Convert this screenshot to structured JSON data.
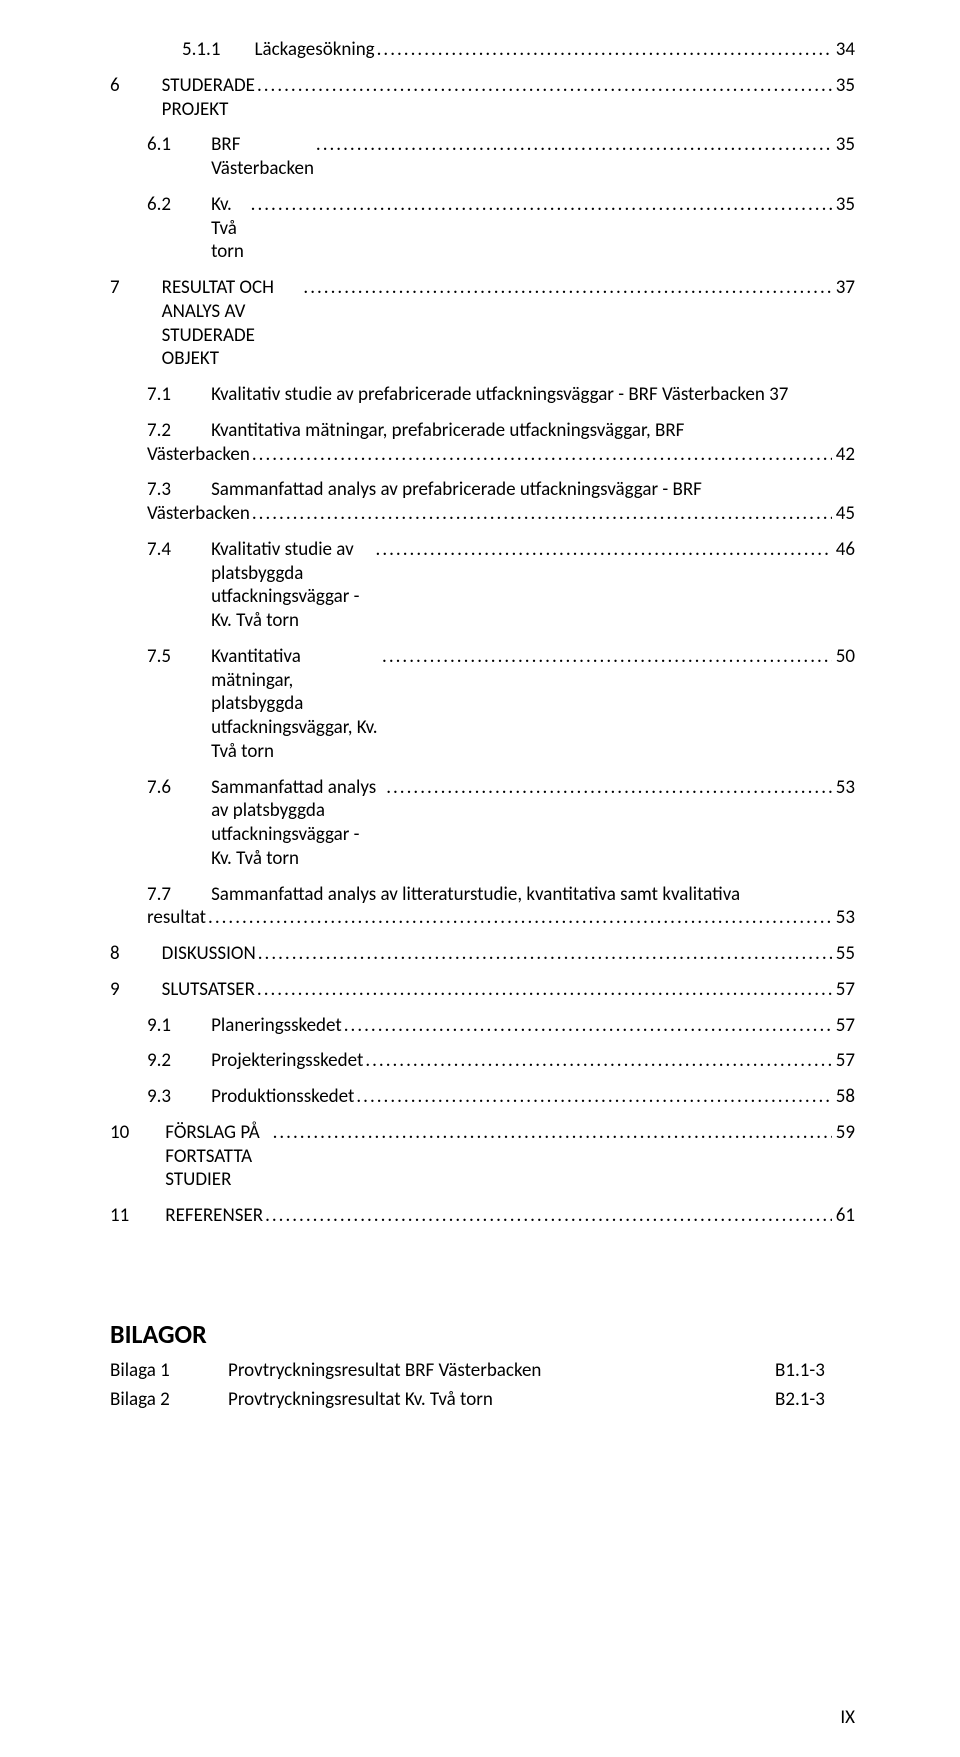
{
  "toc": [
    {
      "level": 3,
      "num": "5.1.1",
      "label": "Läckagesökning",
      "page": "34"
    },
    {
      "level": 1,
      "num": "6",
      "label": "STUDERADE PROJEKT",
      "page": "35"
    },
    {
      "level": 2,
      "num": "6.1",
      "label": "BRF Västerbacken",
      "page": "35"
    },
    {
      "level": 2,
      "num": "6.2",
      "label": "Kv. Två torn",
      "page": "35"
    },
    {
      "level": 1,
      "num": "7",
      "label": "RESULTAT OCH ANALYS AV STUDERADE OBJEKT",
      "page": "37"
    },
    {
      "level": 2,
      "num": "7.1",
      "label": "Kvalitativ studie av prefabricerade utfackningsväggar - BRF Västerbacken",
      "page": "37",
      "nobreakpage": true
    },
    {
      "level": 2,
      "num": "7.2",
      "label": "Kvantitativa mätningar, prefabricerade utfackningsväggar, BRF",
      "cont": "Västerbacken",
      "page": "42",
      "multiline": true
    },
    {
      "level": 2,
      "num": "7.3",
      "label": "Sammanfattad analys av prefabricerade utfackningsväggar - BRF",
      "cont": "Västerbacken",
      "page": "45",
      "multiline": true
    },
    {
      "level": 2,
      "num": "7.4",
      "label": "Kvalitativ studie av platsbyggda utfackningsväggar - Kv. Två torn",
      "page": "46"
    },
    {
      "level": 2,
      "num": "7.5",
      "label": "Kvantitativa mätningar, platsbyggda utfackningsväggar, Kv. Två torn",
      "page": "50"
    },
    {
      "level": 2,
      "num": "7.6",
      "label": "Sammanfattad analys av platsbyggda utfackningsväggar - Kv. Två torn",
      "page": "53"
    },
    {
      "level": 2,
      "num": "7.7",
      "label": "Sammanfattad analys av litteraturstudie, kvantitativa samt kvalitativa",
      "cont": "resultat",
      "page": "53",
      "multiline": true
    },
    {
      "level": 1,
      "num": "8",
      "label": "DISKUSSION",
      "page": "55"
    },
    {
      "level": 1,
      "num": "9",
      "label": "SLUTSATSER",
      "page": "57"
    },
    {
      "level": 2,
      "num": "9.1",
      "label": "Planeringsskedet",
      "page": "57"
    },
    {
      "level": 2,
      "num": "9.2",
      "label": "Projekteringsskedet",
      "page": "57"
    },
    {
      "level": 2,
      "num": "9.3",
      "label": "Produktionsskedet",
      "page": "58"
    },
    {
      "level": 1,
      "num": "10",
      "label": "FÖRSLAG PÅ FORTSATTA STUDIER",
      "page": "59",
      "wide": true
    },
    {
      "level": 1,
      "num": "11",
      "label": "REFERENSER",
      "page": "61",
      "wide": true
    }
  ],
  "appendix_heading": "BILAGOR",
  "appendix": [
    {
      "label": "Bilaga 1",
      "title": "Provtryckningsresultat BRF Västerbacken",
      "ref": "B1.1-3"
    },
    {
      "label": "Bilaga 2",
      "title": "Provtryckningsresultat Kv. Två torn",
      "ref": "B2.1-3"
    }
  ],
  "page_number": "IX",
  "leader_fill": "........................................................................................................................................................................................................"
}
